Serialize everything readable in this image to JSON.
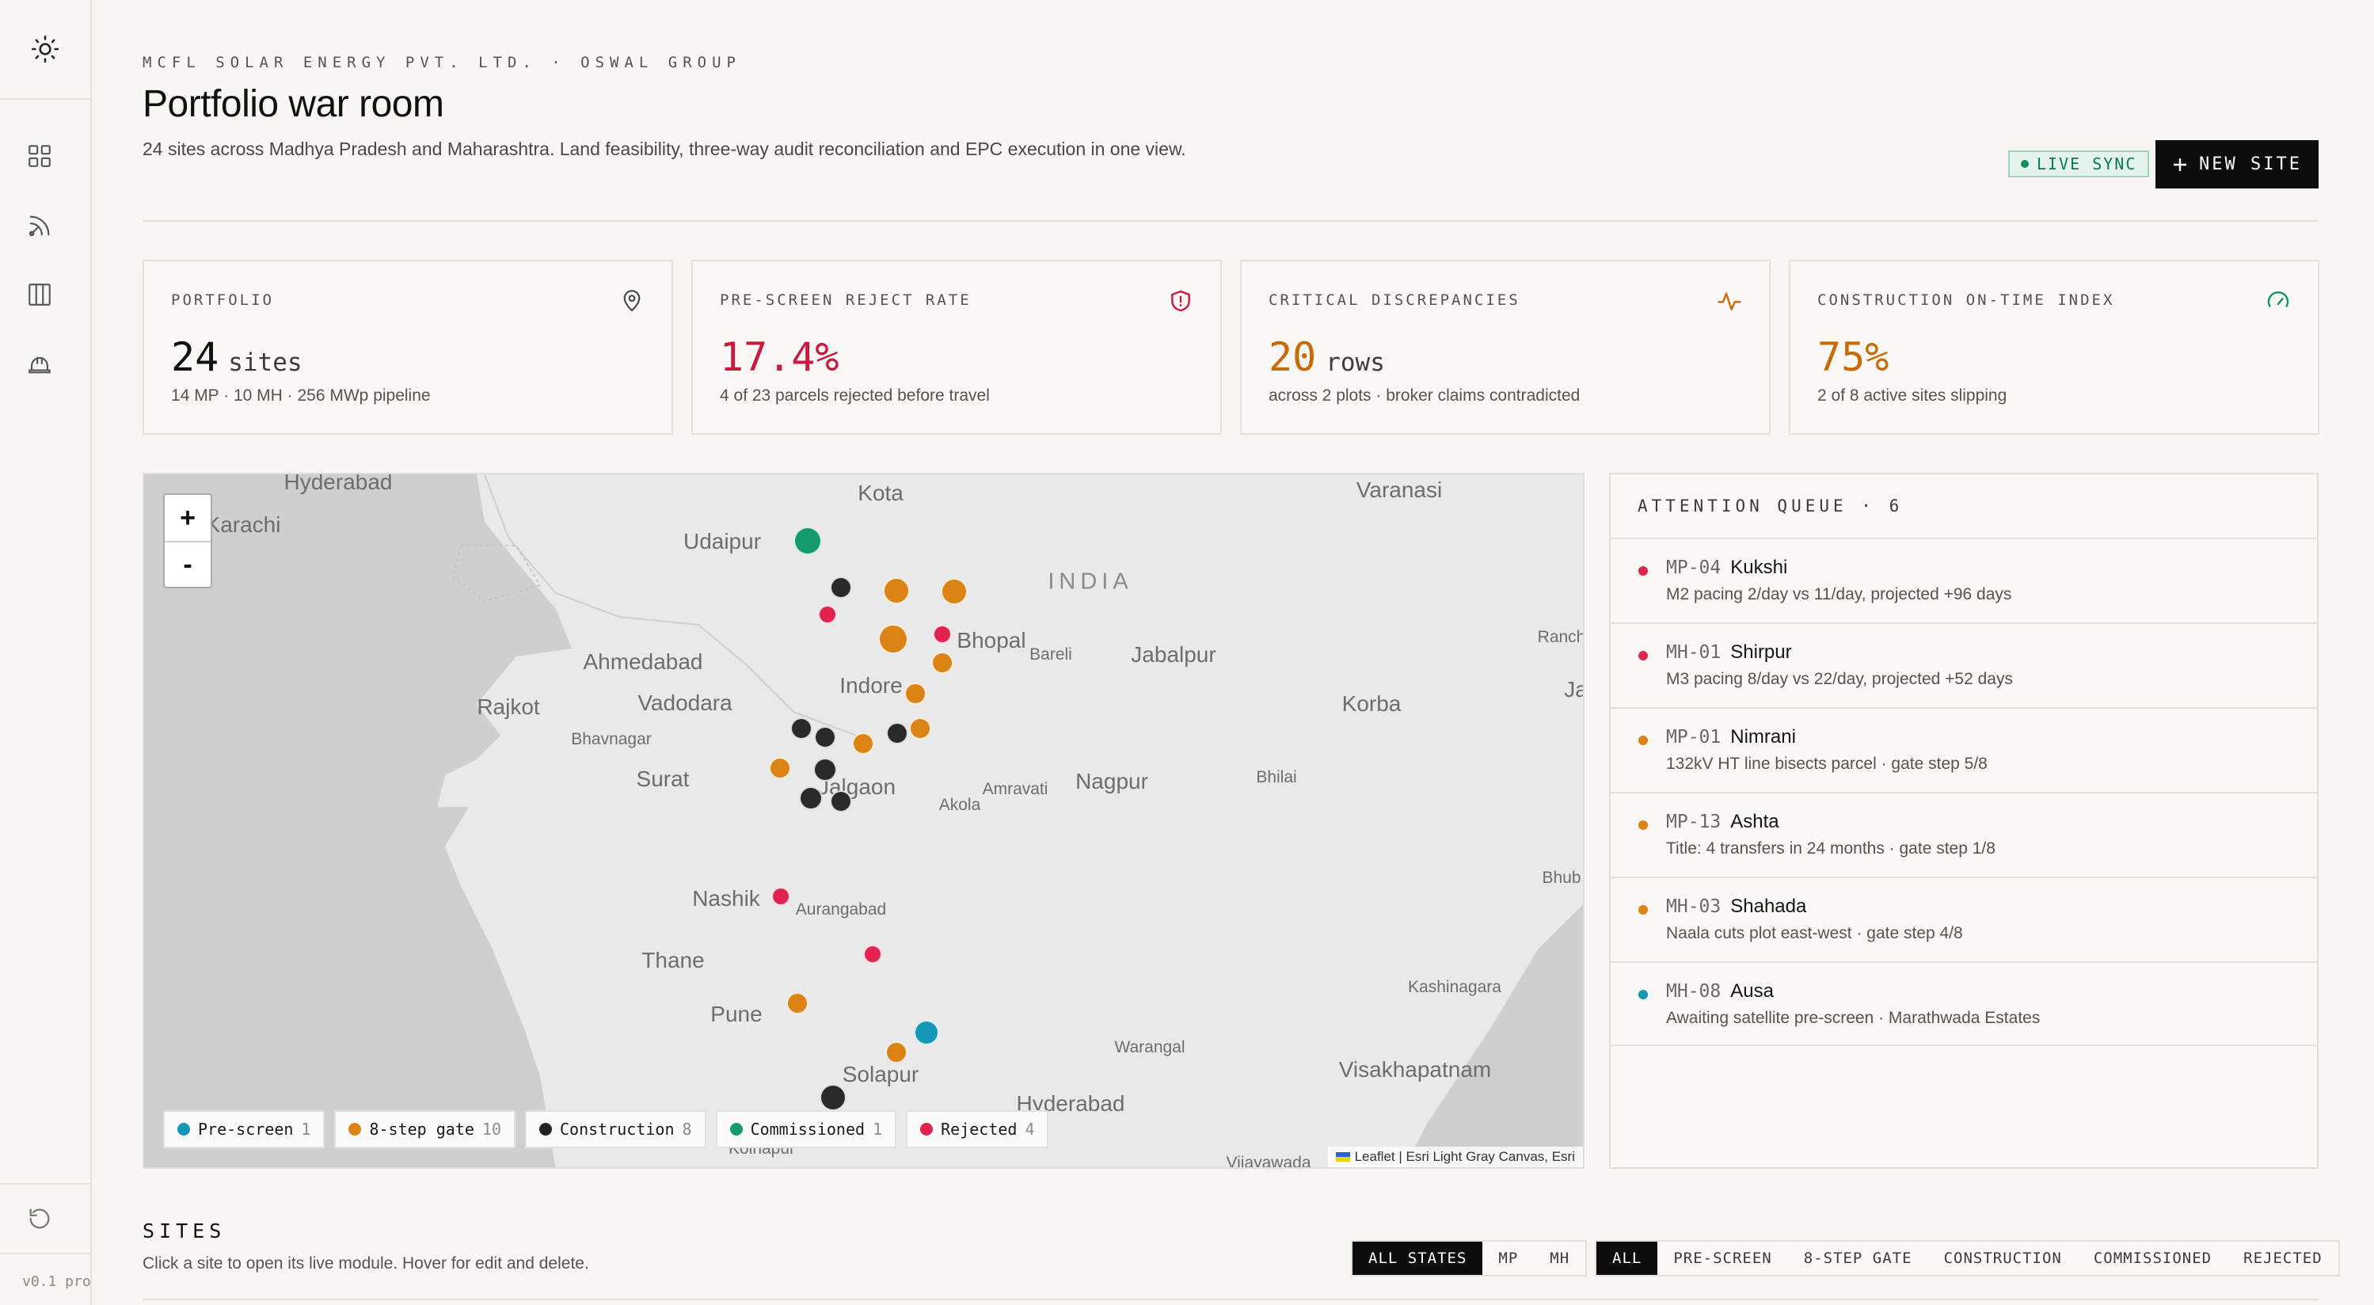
{
  "sidebar": {
    "items": [
      {
        "name": "sun-icon"
      },
      {
        "name": "grid-icon"
      },
      {
        "name": "satellite-icon"
      },
      {
        "name": "columns-icon"
      },
      {
        "name": "hardhat-icon"
      },
      {
        "name": "refresh-icon"
      }
    ],
    "version": "v0.1 pro"
  },
  "header": {
    "eyebrow": "MCFL SOLAR ENERGY PVT. LTD. · OSWAL GROUP",
    "title": "Portfolio war room",
    "description": "24 sites across Madhya Pradesh and Maharashtra. Land feasibility, three-way audit reconciliation and EPC execution in one view.",
    "live_sync": "LIVE SYNC",
    "new_site": "NEW SITE"
  },
  "kpis": [
    {
      "label": "PORTFOLIO",
      "value": "24",
      "unit": "sites",
      "sub": "14 MP · 10 MH · 256 MWp pipeline",
      "color": "#111111",
      "icon": "map-pin-icon"
    },
    {
      "label": "PRE-SCREEN REJECT RATE",
      "value": "17.4%",
      "unit": "",
      "sub": "4 of 23 parcels rejected before travel",
      "color": "#c8193f",
      "icon": "shield-alert-icon"
    },
    {
      "label": "CRITICAL DISCREPANCIES",
      "value": "20",
      "unit": "rows",
      "sub": "across 2 plots · broker claims contradicted",
      "color": "#c86a06",
      "icon": "activity-icon"
    },
    {
      "label": "CONSTRUCTION ON-TIME INDEX",
      "value": "75%",
      "unit": "",
      "sub": "2 of 8 active sites slipping",
      "color": "#c86a06",
      "icon": "gauge-icon"
    }
  ],
  "map": {
    "zoom_in": "+",
    "zoom_out": "-",
    "attribution": "Leaflet | Esri Light Gray Canvas, Esri",
    "cities": [
      {
        "name": "Hyderabad"
      },
      {
        "name": "Karachi"
      },
      {
        "name": "Kota"
      },
      {
        "name": "Udaipur"
      },
      {
        "name": "Varanasi"
      },
      {
        "name": "INDIA"
      },
      {
        "name": "Bhopal"
      },
      {
        "name": "Bareli"
      },
      {
        "name": "Jabalpur"
      },
      {
        "name": "Ahmedabad"
      },
      {
        "name": "Indore"
      },
      {
        "name": "Ranch"
      },
      {
        "name": "Rajkot"
      },
      {
        "name": "Vadodara"
      },
      {
        "name": "Korba"
      },
      {
        "name": "Ja"
      },
      {
        "name": "Bhavnagar"
      },
      {
        "name": "Surat"
      },
      {
        "name": "Jalgaon"
      },
      {
        "name": "Amravati"
      },
      {
        "name": "Nagpur"
      },
      {
        "name": "Bhilai"
      },
      {
        "name": "Akola"
      },
      {
        "name": "Nashik"
      },
      {
        "name": "Aurangabad"
      },
      {
        "name": "Bhub"
      },
      {
        "name": "Thane"
      },
      {
        "name": "Kashinagara"
      },
      {
        "name": "Pune"
      },
      {
        "name": "Warangal"
      },
      {
        "name": "Solapur"
      },
      {
        "name": "Visakhapatnam"
      },
      {
        "name": "Hyderabad"
      },
      {
        "name": "Kolhapur"
      },
      {
        "name": "Vijayawada"
      }
    ],
    "legend": [
      {
        "label": "Pre-screen",
        "count": "1",
        "color": "#1597b5"
      },
      {
        "label": "8-step gate",
        "count": "10",
        "color": "#dc8316"
      },
      {
        "label": "Construction",
        "count": "8",
        "color": "#222222"
      },
      {
        "label": "Commissioned",
        "count": "1",
        "color": "#159b6e"
      },
      {
        "label": "Rejected",
        "count": "4",
        "color": "#e0244f"
      }
    ],
    "status_colors": {
      "prescreen": "#1597b5",
      "gate": "#dc8316",
      "construction": "#2a2a2a",
      "commissioned": "#159b6e",
      "rejected": "#e0244f"
    },
    "pins": [
      {
        "status": "commissioned"
      },
      {
        "status": "construction"
      },
      {
        "status": "gate"
      },
      {
        "status": "gate"
      },
      {
        "status": "rejected"
      },
      {
        "status": "gate"
      },
      {
        "status": "rejected"
      },
      {
        "status": "gate"
      },
      {
        "status": "gate"
      },
      {
        "status": "construction"
      },
      {
        "status": "construction"
      },
      {
        "status": "gate"
      },
      {
        "status": "gate"
      },
      {
        "status": "construction"
      },
      {
        "status": "gate"
      },
      {
        "status": "construction"
      },
      {
        "status": "construction"
      },
      {
        "status": "rejected"
      },
      {
        "status": "construction"
      },
      {
        "status": "rejected"
      },
      {
        "status": "gate"
      },
      {
        "status": "prescreen"
      },
      {
        "status": "gate"
      },
      {
        "status": "construction"
      }
    ]
  },
  "queue": {
    "title": "ATTENTION QUEUE · 6",
    "items": [
      {
        "code": "MP-04",
        "name": "Kukshi",
        "desc": "M2 pacing 2/day vs 11/day, projected +96 days",
        "color": "#e0244f"
      },
      {
        "code": "MH-01",
        "name": "Shirpur",
        "desc": "M3 pacing 8/day vs 22/day, projected +52 days",
        "color": "#e0244f"
      },
      {
        "code": "MP-01",
        "name": "Nimrani",
        "desc": "132kV HT line bisects parcel · gate step 5/8",
        "color": "#dc8316"
      },
      {
        "code": "MP-13",
        "name": "Ashta",
        "desc": "Title: 4 transfers in 24 months · gate step 1/8",
        "color": "#dc8316"
      },
      {
        "code": "MH-03",
        "name": "Shahada",
        "desc": "Naala cuts plot east-west · gate step 4/8",
        "color": "#dc8316"
      },
      {
        "code": "MH-08",
        "name": "Ausa",
        "desc": "Awaiting satellite pre-screen · Marathwada Estates",
        "color": "#1597b5"
      }
    ]
  },
  "sites": {
    "title": "SITES",
    "description": "Click a site to open its live module. Hover for edit and delete.",
    "state_filters": [
      "ALL STATES",
      "MP",
      "MH"
    ],
    "state_active": "ALL STATES",
    "stage_filters": [
      "ALL",
      "PRE-SCREEN",
      "8-STEP GATE",
      "CONSTRUCTION",
      "COMMISSIONED",
      "REJECTED"
    ],
    "stage_active": "ALL"
  }
}
